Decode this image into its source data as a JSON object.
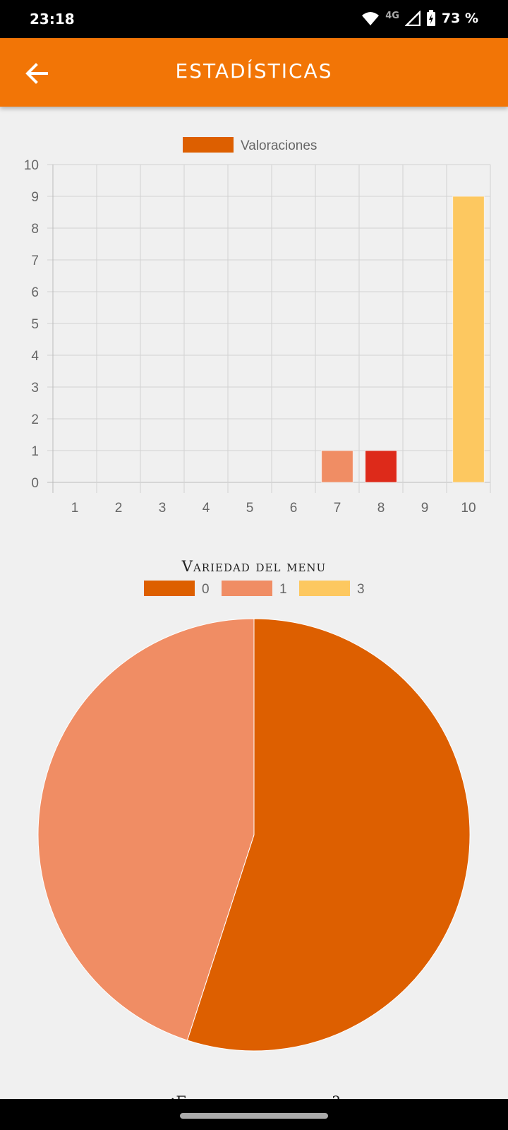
{
  "status_bar": {
    "time": "23:18",
    "network": "4G",
    "battery": "73 %",
    "icons": [
      "wifi-icon",
      "signal-icon",
      "battery-charging-icon"
    ]
  },
  "app_bar": {
    "title": "ESTADÍSTICAS",
    "back_icon": "arrow-left-icon",
    "color": "#f27506"
  },
  "chart_data": [
    {
      "type": "bar",
      "legend": [
        "Valoraciones"
      ],
      "legend_placement": "top",
      "categories": [
        "1",
        "2",
        "3",
        "4",
        "5",
        "6",
        "7",
        "8",
        "9",
        "10"
      ],
      "series": [
        {
          "name": "Valoraciones",
          "values": [
            0,
            0,
            0,
            0,
            0,
            0,
            1,
            1,
            0,
            9
          ]
        }
      ],
      "bar_colors": [
        "#dd5f00",
        "#f08d64",
        "#fdc860",
        "#dd5f00",
        "#f08d64",
        "#fdc860",
        "#f08d64",
        "#dd2a1a",
        "#dd5f00",
        "#fdc860"
      ],
      "legend_color": "#dd5f00",
      "ylim": [
        0,
        10
      ],
      "yticks": [
        "0",
        "1",
        "2",
        "3",
        "4",
        "5",
        "6",
        "7",
        "8",
        "9",
        "10"
      ],
      "grid": true
    },
    {
      "type": "pie",
      "title": "Variedad del menu",
      "legend_placement": "top",
      "labels": [
        "0",
        "1",
        "3"
      ],
      "values": [
        11,
        9,
        0
      ],
      "colors": [
        "#dd5f00",
        "#f08d64",
        "#fdc860"
      ]
    }
  ],
  "next_section": {
    "title": "¿El precio es adecuado?"
  }
}
